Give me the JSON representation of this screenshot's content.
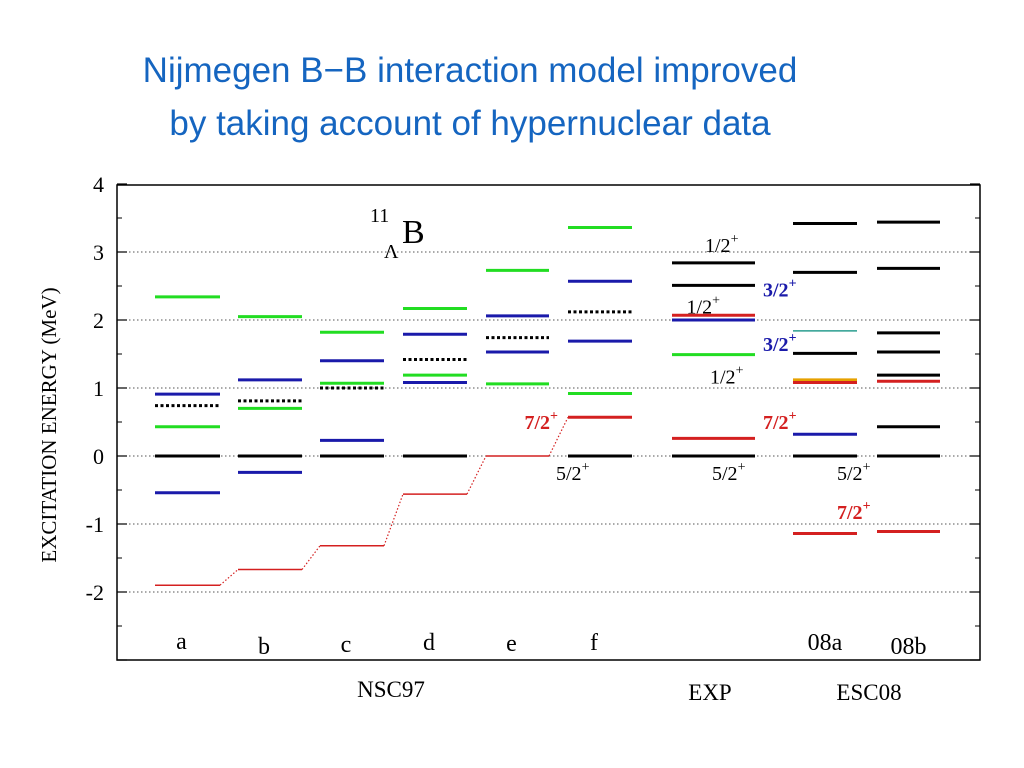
{
  "slide": {
    "title_line1": "Nijmegen B−B interaction model improved",
    "title_line2": "by taking account of hypernuclear data"
  },
  "colors": {
    "title": "#1565c0",
    "black": "#000000",
    "green": "#22dd22",
    "blue": "#1a1aaa",
    "red": "#d42020",
    "teal": "#2a9d8f",
    "orange": "#e6a100"
  },
  "chart_data": {
    "type": "level_diagram",
    "title": "",
    "nucleus": {
      "mass": "11",
      "sub": "Λ",
      "element": "B"
    },
    "ylabel": "EXCITATION ENERGY  (MeV)",
    "ylim": [
      -3,
      4
    ],
    "yticks": [
      "4",
      "3",
      "2",
      "1",
      "0",
      "-1",
      "-2"
    ],
    "grid": true,
    "groups": [
      {
        "label": "NSC97",
        "columns": [
          "a",
          "b",
          "c",
          "d",
          "e",
          "f"
        ]
      },
      {
        "label": "EXP",
        "columns": [
          "exp"
        ]
      },
      {
        "label": "ESC08",
        "columns": [
          "08a",
          "08b"
        ]
      }
    ],
    "columns": [
      {
        "id": "a",
        "label": "a",
        "levels": [
          {
            "e": 2.34,
            "c": "green"
          },
          {
            "e": 0.91,
            "c": "blue"
          },
          {
            "e": 0.74,
            "c": "black",
            "dotted": true
          },
          {
            "e": 0.43,
            "c": "green"
          },
          {
            "e": 0.0,
            "c": "black"
          },
          {
            "e": -0.54,
            "c": "blue"
          },
          {
            "e": -1.9,
            "c": "red"
          }
        ]
      },
      {
        "id": "b",
        "label": "b",
        "levels": [
          {
            "e": 2.05,
            "c": "green"
          },
          {
            "e": 1.12,
            "c": "blue"
          },
          {
            "e": 0.81,
            "c": "black",
            "dotted": true
          },
          {
            "e": 0.7,
            "c": "green"
          },
          {
            "e": 0.0,
            "c": "black"
          },
          {
            "e": -0.24,
            "c": "blue"
          },
          {
            "e": -1.67,
            "c": "red"
          }
        ]
      },
      {
        "id": "c",
        "label": "c",
        "levels": [
          {
            "e": 1.82,
            "c": "green"
          },
          {
            "e": 1.4,
            "c": "blue"
          },
          {
            "e": 1.07,
            "c": "green"
          },
          {
            "e": 1.0,
            "c": "black",
            "dotted": true
          },
          {
            "e": 0.23,
            "c": "blue"
          },
          {
            "e": 0.0,
            "c": "black"
          },
          {
            "e": -1.32,
            "c": "red"
          }
        ]
      },
      {
        "id": "d",
        "label": "d",
        "levels": [
          {
            "e": 2.17,
            "c": "green"
          },
          {
            "e": 1.79,
            "c": "blue"
          },
          {
            "e": 1.42,
            "c": "black",
            "dotted": true
          },
          {
            "e": 1.19,
            "c": "green"
          },
          {
            "e": 1.08,
            "c": "blue"
          },
          {
            "e": 0.0,
            "c": "black"
          },
          {
            "e": -0.56,
            "c": "red"
          }
        ]
      },
      {
        "id": "e",
        "label": "e",
        "levels": [
          {
            "e": 2.73,
            "c": "green"
          },
          {
            "e": 2.06,
            "c": "blue"
          },
          {
            "e": 1.74,
            "c": "black",
            "dotted": true
          },
          {
            "e": 1.53,
            "c": "blue"
          },
          {
            "e": 1.06,
            "c": "green"
          },
          {
            "e": 0.0,
            "c": "red"
          }
        ]
      },
      {
        "id": "f",
        "label": "f",
        "levels": [
          {
            "e": 3.36,
            "c": "green"
          },
          {
            "e": 2.57,
            "c": "blue"
          },
          {
            "e": 2.12,
            "c": "black",
            "dotted": true
          },
          {
            "e": 1.69,
            "c": "blue"
          },
          {
            "e": 0.92,
            "c": "green"
          },
          {
            "e": 0.57,
            "c": "red"
          },
          {
            "e": 0.0,
            "c": "black"
          }
        ]
      },
      {
        "id": "exp",
        "label": "",
        "levels": [
          {
            "e": 2.84,
            "c": "black"
          },
          {
            "e": 2.51,
            "c": "black"
          },
          {
            "e": 2.07,
            "c": "red"
          },
          {
            "e": 2.0,
            "c": "blue"
          },
          {
            "e": 1.49,
            "c": "green"
          },
          {
            "e": 0.26,
            "c": "red"
          },
          {
            "e": 0.0,
            "c": "black"
          }
        ]
      },
      {
        "id": "08a",
        "label": "08a",
        "levels": [
          {
            "e": 3.42,
            "c": "black"
          },
          {
            "e": 2.7,
            "c": "black"
          },
          {
            "e": 1.84,
            "c": "teal"
          },
          {
            "e": 1.51,
            "c": "black"
          },
          {
            "e": 1.12,
            "c": "orange"
          },
          {
            "e": 1.08,
            "c": "red"
          },
          {
            "e": 0.32,
            "c": "blue"
          },
          {
            "e": 0.0,
            "c": "black"
          },
          {
            "e": -1.14,
            "c": "red"
          }
        ]
      },
      {
        "id": "08b",
        "label": "08b",
        "levels": [
          {
            "e": 3.44,
            "c": "black"
          },
          {
            "e": 2.76,
            "c": "black"
          },
          {
            "e": 1.81,
            "c": "black"
          },
          {
            "e": 1.53,
            "c": "black"
          },
          {
            "e": 1.19,
            "c": "black"
          },
          {
            "e": 1.1,
            "c": "red"
          },
          {
            "e": 0.43,
            "c": "black"
          },
          {
            "e": 0.0,
            "c": "black"
          },
          {
            "e": -1.11,
            "c": "red"
          }
        ]
      }
    ],
    "red_connector": [
      {
        "col": "a",
        "e": -1.9
      },
      {
        "col": "b",
        "e": -1.67
      },
      {
        "col": "c",
        "e": -1.32
      },
      {
        "col": "d",
        "e": -0.56
      },
      {
        "col": "e",
        "e": 0.0
      },
      {
        "col": "f",
        "e": 0.57
      }
    ],
    "annotations": [
      {
        "col": "f",
        "side": "left",
        "e": 0.5,
        "j": "7/2",
        "p": "+",
        "c": "red"
      },
      {
        "col": "f",
        "side": "below",
        "e": -0.25,
        "j": "5/2",
        "p": "+",
        "c": "black"
      },
      {
        "col": "exp",
        "side": "top",
        "e": 3.1,
        "j": "1/2",
        "p": "+",
        "c": "black"
      },
      {
        "col": "exp",
        "side": "left",
        "e": 2.2,
        "j": "1/2",
        "p": "+",
        "c": "black"
      },
      {
        "col": "exp",
        "side": "right",
        "e": 2.45,
        "j": "3/2",
        "p": "+",
        "c": "blue"
      },
      {
        "col": "exp",
        "side": "right",
        "e": 1.65,
        "j": "3/2",
        "p": "+",
        "c": "blue"
      },
      {
        "col": "exp",
        "side": "rightlow",
        "e": 1.17,
        "j": "1/2",
        "p": "+",
        "c": "black"
      },
      {
        "col": "exp",
        "side": "right",
        "e": 0.5,
        "j": "7/2",
        "p": "+",
        "c": "red"
      },
      {
        "col": "exp",
        "side": "below",
        "e": -0.25,
        "j": "5/2",
        "p": "+",
        "c": "black"
      },
      {
        "col": "08a",
        "side": "below",
        "e": -0.25,
        "j": "5/2",
        "p": "+",
        "c": "black"
      },
      {
        "col": "08a",
        "side": "right",
        "e": -0.82,
        "j": "7/2",
        "p": "+",
        "c": "red"
      }
    ]
  }
}
